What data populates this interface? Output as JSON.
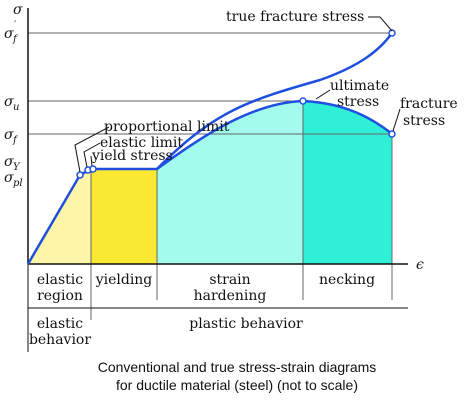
{
  "axes": {
    "y_symbol": "σ",
    "x_symbol": "ϵ",
    "ticks": [
      {
        "base": "σ",
        "sub": "f",
        "prime": "′"
      },
      {
        "base": "σ",
        "sub": "u",
        "prime": ""
      },
      {
        "base": "σ",
        "sub": "f",
        "prime": ""
      },
      {
        "base": "σ",
        "sub": "Y",
        "prime": ""
      },
      {
        "base": "σ",
        "sub": "pl",
        "prime": ""
      }
    ]
  },
  "annotations": {
    "true_fracture": "true fracture stress",
    "ultimate_1": "ultimate",
    "ultimate_2": "stress",
    "fracture_1": "fracture",
    "fracture_2": "stress",
    "proportional": "proportional limit",
    "elastic_limit": "elastic limit",
    "yield": "yield stress"
  },
  "regions": [
    {
      "lines": [
        "elastic",
        "region"
      ],
      "color": "#fdf6a8"
    },
    {
      "lines": [
        "yielding"
      ],
      "color": "#fbe832"
    },
    {
      "lines": [
        "strain",
        "hardening"
      ],
      "color": "#a3fbee"
    },
    {
      "lines": [
        "necking"
      ],
      "color": "#2ff0d6"
    }
  ],
  "behaviors": [
    "elastic",
    "behavior",
    "plastic behavior"
  ],
  "caption": [
    "Conventional and true stress-strain diagrams",
    "for ductile material (steel) (not to scale)"
  ],
  "colors": {
    "curve": "#1f4fe0",
    "axis": "#111111"
  }
}
